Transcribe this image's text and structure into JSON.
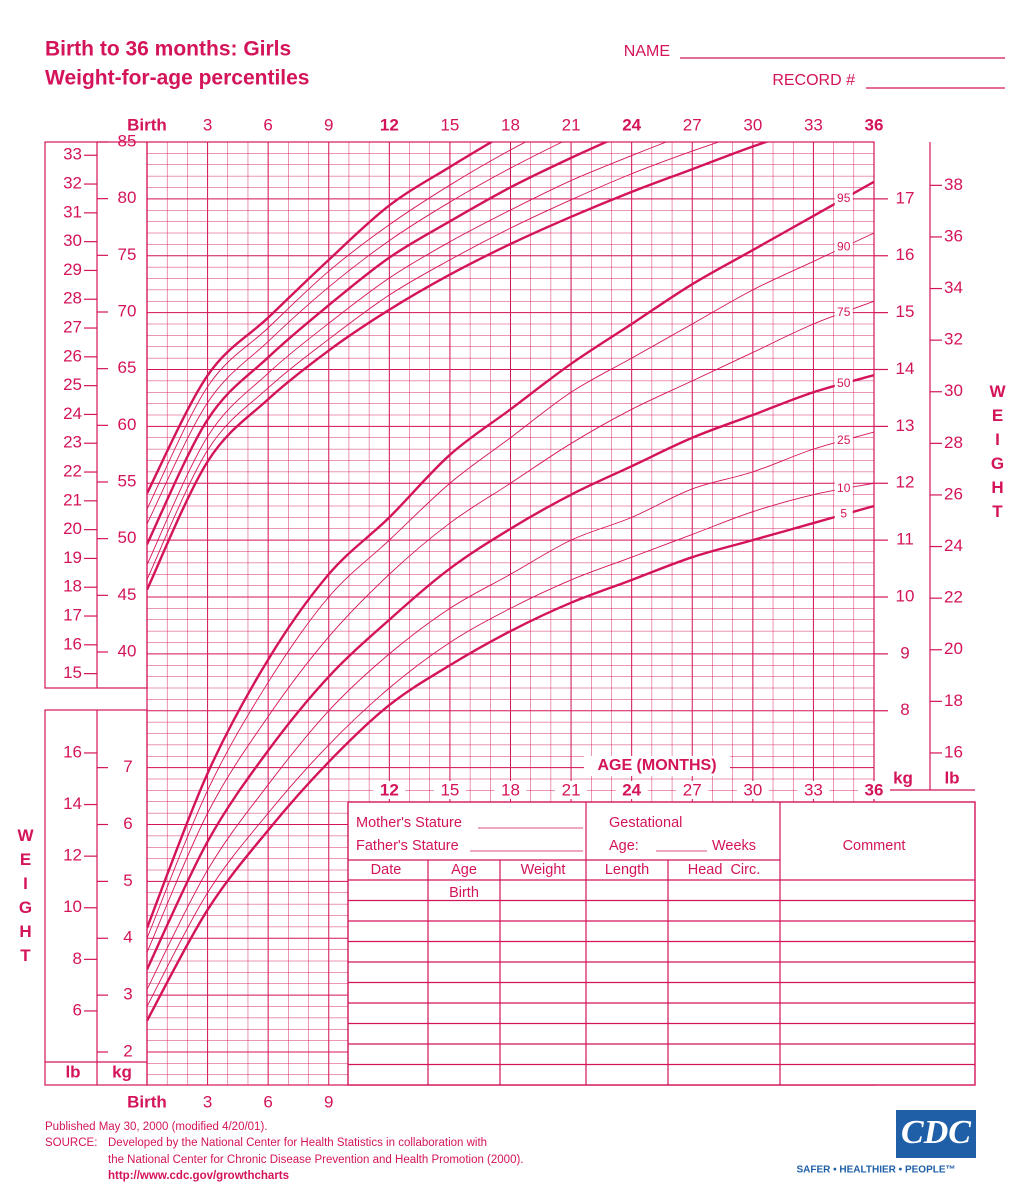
{
  "header": {
    "title": [
      "Birth to 36 months: Girls",
      "Weight-for-age percentiles"
    ],
    "name_label": "NAME",
    "record_label": "RECORD #"
  },
  "chart_data": {
    "type": "line",
    "color": "#d4145a",
    "x": [
      0,
      3,
      6,
      9,
      12,
      15,
      18,
      21,
      24,
      27,
      30,
      33,
      36
    ],
    "xlim": [
      0,
      36
    ],
    "xticks": [
      {
        "value": 0,
        "label": "Birth"
      },
      3,
      6,
      9,
      12,
      15,
      18,
      21,
      24,
      27,
      30,
      33,
      36
    ],
    "xlabel": "AGE (MONTHS)",
    "ylim": [
      37,
      85
    ],
    "yticks": [
      40,
      45,
      50,
      55,
      60,
      65,
      70,
      75,
      80,
      85
    ],
    "yinlim": [
      14.57,
      33.46
    ],
    "yinticks": [
      15,
      16,
      17,
      18,
      19,
      20,
      21,
      22,
      23,
      24,
      25,
      26,
      27,
      28,
      29,
      30,
      31,
      32,
      33
    ],
    "y2lim": [
      1.42,
      18
    ],
    "y2ticks": [
      2,
      3,
      4,
      5,
      6,
      7,
      8,
      9,
      10,
      11,
      12,
      13,
      14,
      15,
      16,
      17
    ],
    "y2lblim": [
      3.13,
      39.68
    ],
    "y2lbticks": [
      6,
      8,
      10,
      12,
      14,
      16,
      18,
      20,
      22,
      24,
      26,
      28,
      30,
      32,
      34,
      36,
      38
    ],
    "y2label": "WEIGHT",
    "kg_label": "kg",
    "lb_label": "lb",
    "series": [
      {
        "axis": "y",
        "line_width": 2.4,
        "values": [
          45.5,
          56.8,
          62.3,
          66.6,
          70.2,
          73.3,
          76.0,
          78.4,
          80.6,
          82.6,
          84.6,
          86.4,
          null
        ]
      },
      {
        "axis": "y",
        "line_width": 0.9,
        "values": [
          46.4,
          57.8,
          63.3,
          67.6,
          71.5,
          74.6,
          77.4,
          79.9,
          82.2,
          84.2,
          86.0,
          null,
          null
        ]
      },
      {
        "axis": "y",
        "line_width": 0.9,
        "values": [
          47.7,
          59.0,
          64.6,
          69.0,
          73.0,
          76.2,
          79.0,
          81.6,
          83.8,
          85.9,
          null,
          null,
          null
        ]
      },
      {
        "axis": "y",
        "line_width": 2.4,
        "values": [
          49.5,
          60.5,
          66.0,
          70.6,
          74.8,
          78.0,
          81.0,
          83.6,
          86.0,
          null,
          null,
          null,
          null
        ]
      },
      {
        "axis": "y",
        "line_width": 0.9,
        "values": [
          51.3,
          62.0,
          67.4,
          72.2,
          76.3,
          79.7,
          82.7,
          85.4,
          null,
          null,
          null,
          null,
          null
        ]
      },
      {
        "axis": "y",
        "line_width": 0.9,
        "values": [
          52.6,
          63.4,
          68.6,
          73.6,
          77.7,
          81.2,
          84.3,
          87.0,
          null,
          null,
          null,
          null,
          null
        ]
      },
      {
        "axis": "y",
        "line_width": 2.4,
        "values": [
          54.0,
          64.4,
          69.5,
          74.6,
          79.4,
          82.8,
          86.0,
          null,
          null,
          null,
          null,
          null,
          null
        ]
      },
      {
        "name": "95",
        "axis": "y2",
        "line_width": 2.4,
        "values": [
          4.18,
          6.9,
          8.9,
          10.4,
          11.4,
          12.5,
          13.3,
          14.1,
          14.8,
          15.5,
          16.1,
          16.7,
          17.3
        ]
      },
      {
        "name": "90",
        "axis": "y2",
        "line_width": 0.9,
        "values": [
          4.0,
          6.6,
          8.5,
          10.0,
          11.0,
          12.0,
          12.8,
          13.6,
          14.2,
          14.8,
          15.4,
          15.9,
          16.4
        ]
      },
      {
        "name": "75",
        "axis": "y2",
        "line_width": 0.9,
        "values": [
          3.75,
          6.2,
          7.9,
          9.3,
          10.4,
          11.3,
          12.0,
          12.7,
          13.3,
          13.8,
          14.3,
          14.8,
          15.2
        ]
      },
      {
        "name": "50",
        "axis": "y2",
        "line_width": 2.4,
        "values": [
          3.45,
          5.7,
          7.3,
          8.6,
          9.6,
          10.5,
          11.2,
          11.8,
          12.3,
          12.8,
          13.2,
          13.6,
          13.9
        ]
      },
      {
        "name": "25",
        "axis": "y2",
        "line_width": 0.9,
        "values": [
          3.1,
          5.2,
          6.7,
          8.0,
          9.0,
          9.8,
          10.4,
          11.0,
          11.4,
          11.9,
          12.2,
          12.6,
          12.9
        ]
      },
      {
        "name": "10",
        "axis": "y2",
        "line_width": 0.9,
        "values": [
          2.8,
          4.8,
          6.2,
          7.4,
          8.4,
          9.2,
          9.8,
          10.3,
          10.7,
          11.1,
          11.5,
          11.8,
          12.0
        ]
      },
      {
        "name": "5",
        "axis": "y2",
        "line_width": 2.4,
        "values": [
          2.55,
          4.5,
          5.9,
          7.1,
          8.1,
          8.8,
          9.4,
          9.9,
          10.3,
          10.7,
          11.0,
          11.3,
          11.6
        ]
      }
    ]
  },
  "table": {
    "mothers_stature": "Mother's Stature",
    "fathers_stature": "Father's Stature",
    "gestational": "Gestational",
    "age": "Age:",
    "weeks": "Weeks",
    "comment": "Comment",
    "columns": [
      "Date",
      "Age",
      "Weight",
      "Length",
      "Head  Circ."
    ],
    "first_row_age": "Birth"
  },
  "footer": {
    "published": "Published May 30, 2000 (modified 4/20/01).",
    "source_label": "SOURCE:",
    "source_lines": [
      "Developed by the National Center for Health Statistics in collaboration with",
      "the National Center for Chronic Disease Prevention and Health Promotion (2000)."
    ],
    "url": "http://www.cdc.gov/growthcharts"
  },
  "logo": {
    "name": "CDC",
    "tagline": "SAFER • HEALTHIER • PEOPLE™"
  }
}
